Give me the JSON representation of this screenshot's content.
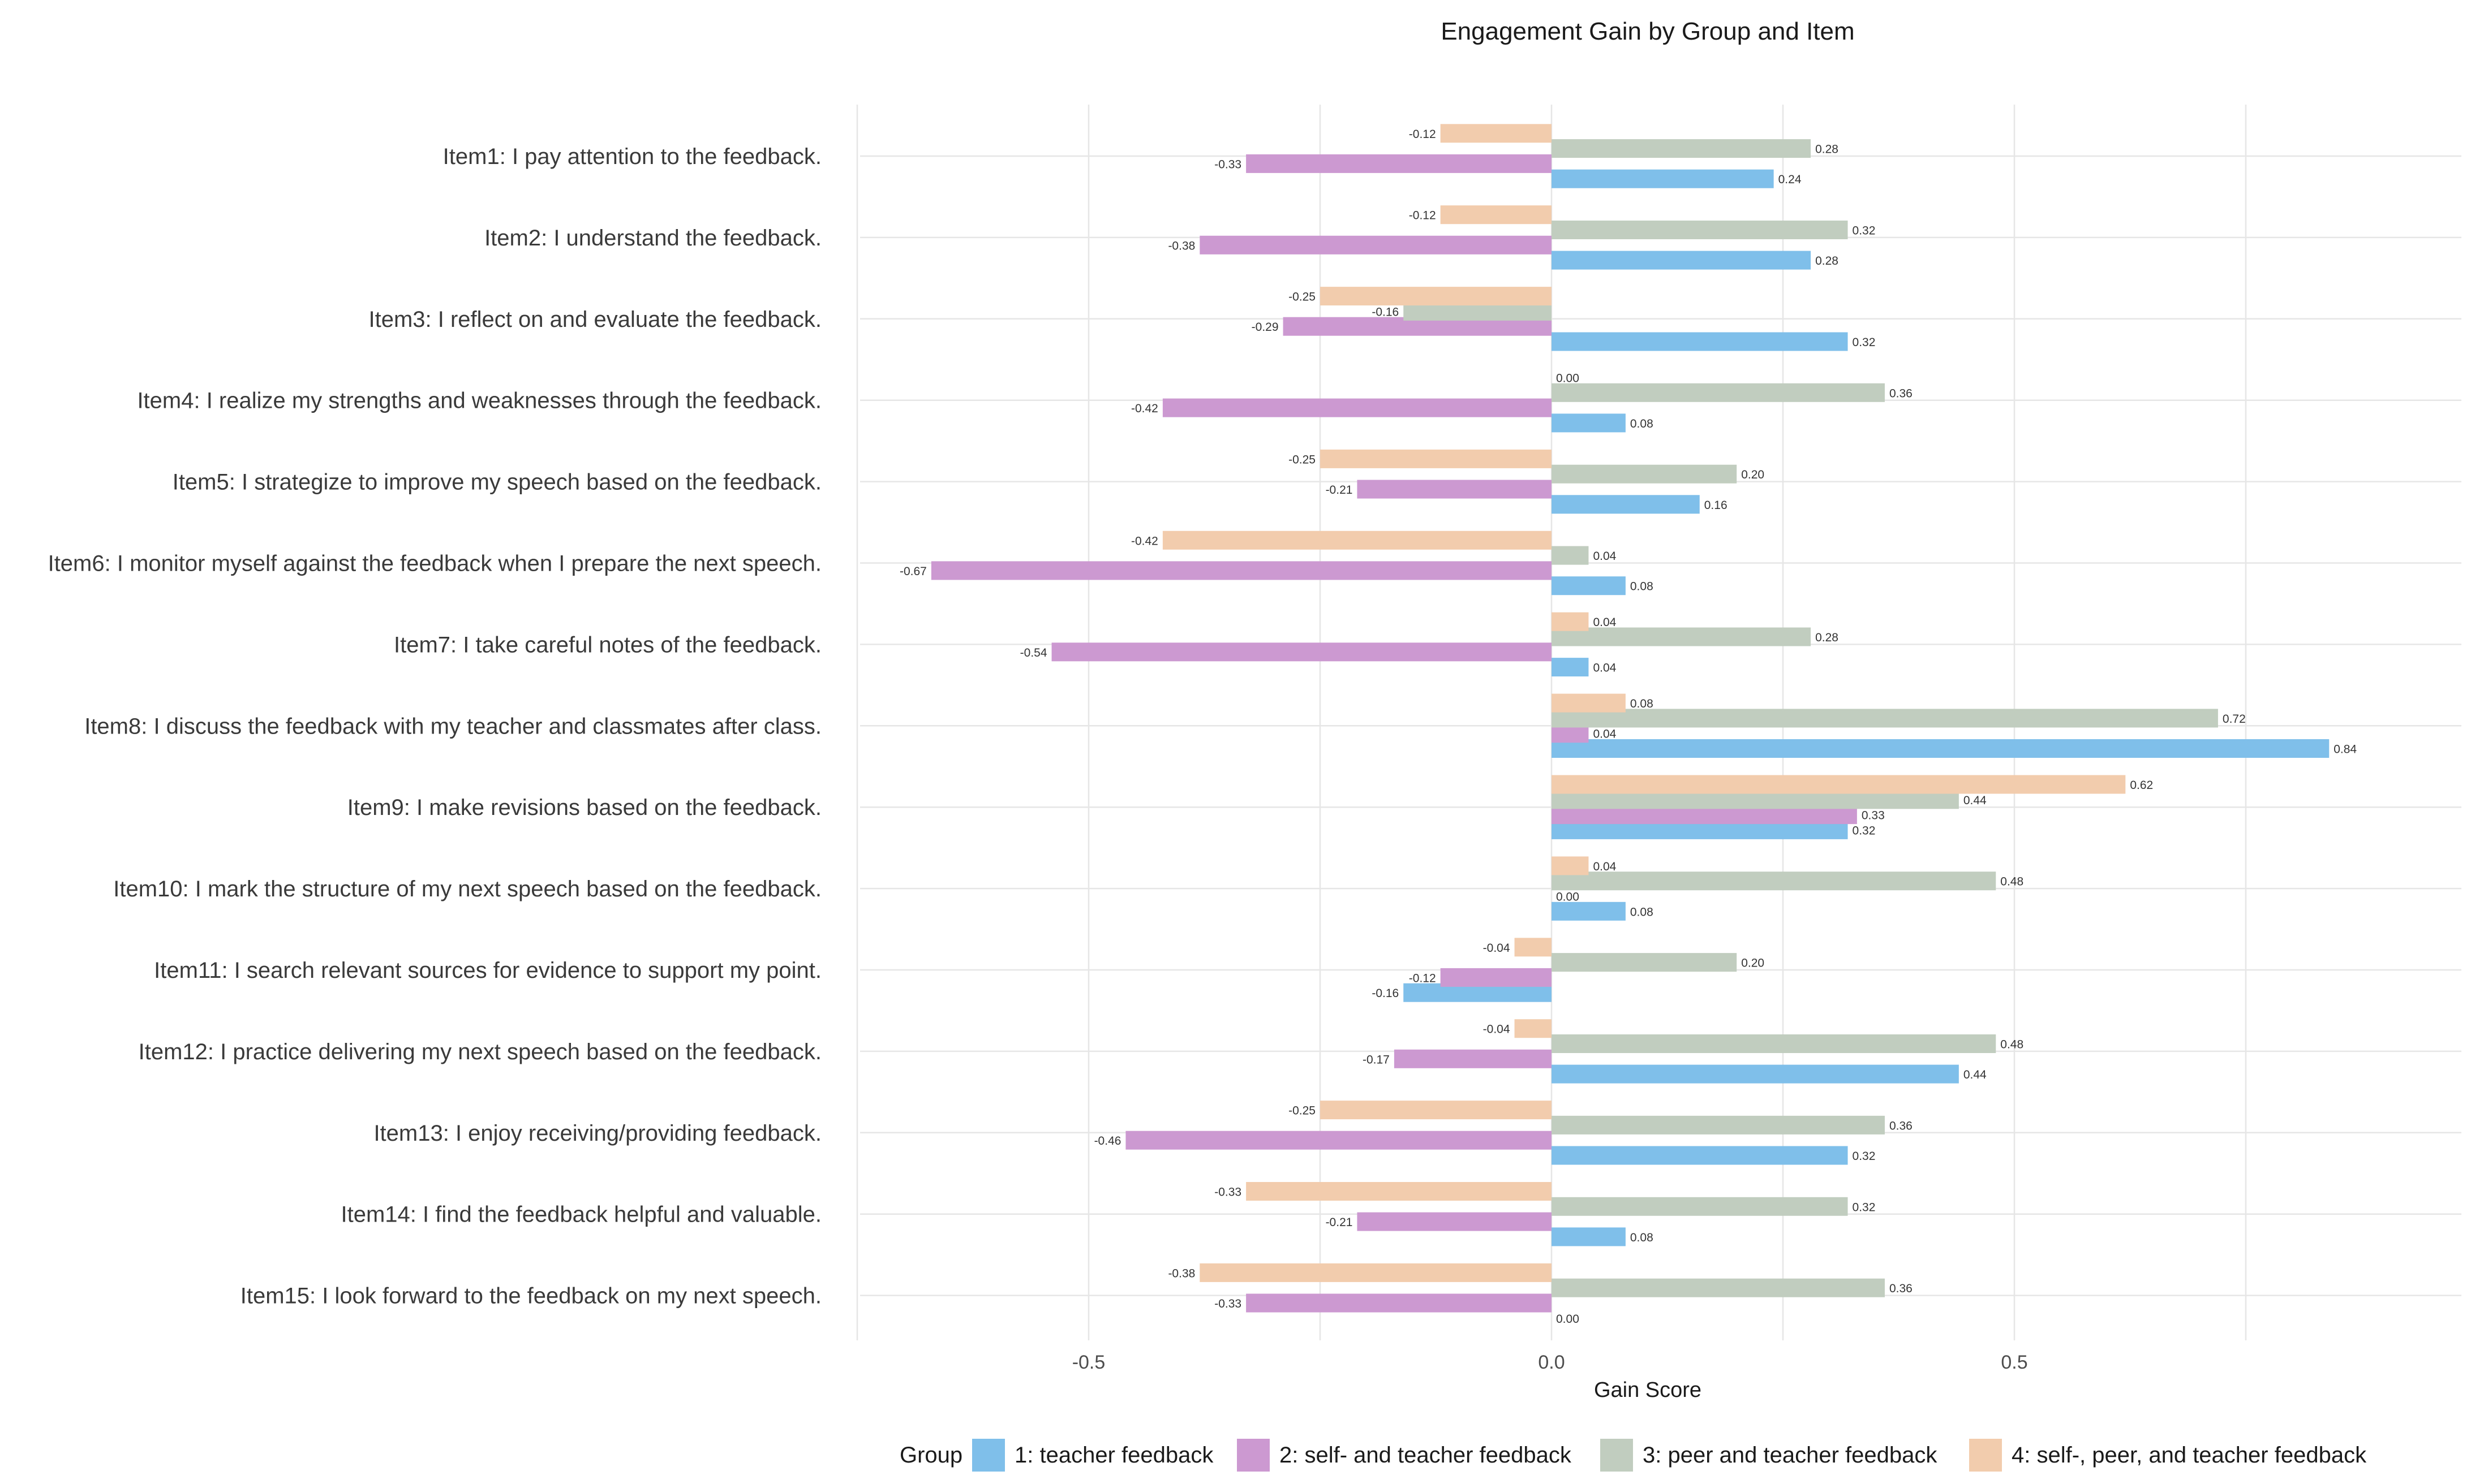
{
  "chart_data": {
    "type": "bar",
    "orientation": "horizontal",
    "title": "Engagement Gain by Group and Item",
    "xlabel": "Gain Score",
    "ylabel": "",
    "xlim": [
      -0.75,
      0.98
    ],
    "xticks": [
      -0.5,
      0.0,
      0.5
    ],
    "xtick_labels": [
      "-0.5",
      "0.0",
      "0.5"
    ],
    "grid": true,
    "legend_title": "Group",
    "legend_position": "bottom",
    "categories": [
      "Item1: I pay attention to the feedback.",
      "Item2: I understand the feedback.",
      "Item3: I reflect on and evaluate the feedback.",
      "Item4: I realize my strengths and weaknesses through the feedback.",
      "Item5: I strategize to improve my speech based on the feedback.",
      "Item6: I monitor myself against the feedback when I prepare the next speech.",
      "Item7: I take careful notes of the feedback.",
      "Item8: I discuss the feedback with my teacher and classmates after class.",
      "Item9: I make revisions based on the feedback.",
      "Item10: I mark the structure of my next speech based on the feedback.",
      "Item11: I search relevant sources for evidence to support my point.",
      "Item12: I practice delivering my next speech based on the feedback.",
      "Item13: I enjoy receiving/providing feedback.",
      "Item14: I find the feedback helpful and valuable.",
      "Item15: I look forward to the feedback on my next speech."
    ],
    "series": [
      {
        "name": "1: teacher feedback",
        "color": "#7fbfea",
        "values": [
          0.24,
          0.28,
          0.32,
          0.08,
          0.16,
          0.08,
          0.04,
          0.84,
          0.32,
          0.08,
          -0.16,
          0.44,
          0.32,
          0.08,
          0.0
        ],
        "labels": [
          "0.24",
          "0.28",
          "0.32",
          "0.08",
          "0.16",
          "0.08",
          "0.04",
          "0.84",
          "0.32",
          "0.08",
          "-0.16",
          "0.44",
          "0.32",
          "0.08",
          "0.00"
        ]
      },
      {
        "name": "2: self- and teacher feedback",
        "color": "#cc99d1",
        "values": [
          -0.33,
          -0.38,
          -0.29,
          -0.42,
          -0.21,
          -0.67,
          -0.54,
          0.04,
          0.33,
          null,
          -0.12,
          -0.17,
          -0.46,
          -0.21,
          -0.33
        ],
        "labels": [
          "-0.33",
          "-0.38",
          "-0.29",
          "-0.42",
          "-0.21",
          "-0.67",
          "-0.54",
          "0.04",
          "0.33",
          "0.00",
          "-0.12",
          "-0.17",
          "-0.46",
          "-0.21",
          "-0.33"
        ]
      },
      {
        "name": "3: peer and teacher feedback",
        "color": "#c1cdbf",
        "values": [
          0.28,
          0.32,
          -0.16,
          0.36,
          0.2,
          0.04,
          0.28,
          0.72,
          0.44,
          0.48,
          0.2,
          0.48,
          0.36,
          0.32,
          0.36
        ],
        "labels": [
          "0.28",
          "0.32",
          "-0.16",
          "0.36",
          "0.20",
          "0.04",
          "0.28",
          "0.72",
          "0.44",
          "0.48",
          "0.20",
          "0.48",
          "0.36",
          "0.32",
          "0.36"
        ]
      },
      {
        "name": "4: self-, peer, and teacher feedback",
        "color": "#f2ccad",
        "values": [
          -0.12,
          -0.12,
          -0.25,
          null,
          -0.25,
          -0.42,
          0.04,
          0.08,
          0.62,
          0.04,
          -0.04,
          -0.04,
          -0.25,
          -0.33,
          -0.38
        ],
        "labels": [
          "-0.12",
          "-0.12",
          "-0.25",
          "0.00",
          "-0.25",
          "-0.42",
          "0.04",
          "0.08",
          "0.62",
          "0.04",
          "-0.04",
          "-0.04",
          "-0.25",
          "-0.33",
          "-0.38"
        ]
      }
    ]
  }
}
